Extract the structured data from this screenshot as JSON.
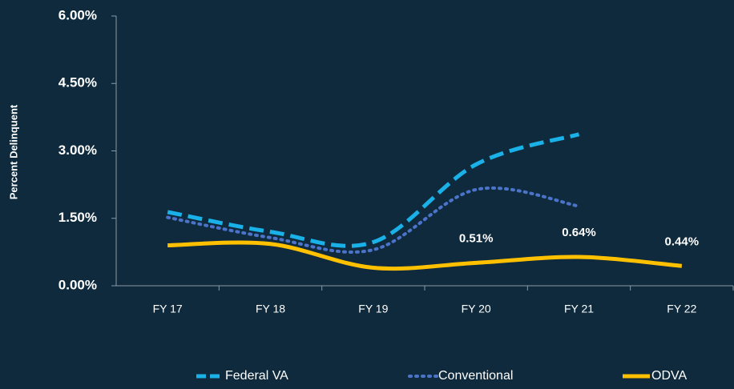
{
  "chart_data": {
    "type": "line",
    "y_label": "Percent  Delinquent",
    "categories": [
      "FY 17",
      "FY 18",
      "FY 19",
      "FY 20",
      "FY 21",
      "FY 22"
    ],
    "series": [
      {
        "name": "Federal VA",
        "color": "#1ab0e8",
        "style": "dashed",
        "values": [
          1.64,
          1.2,
          0.97,
          2.7,
          3.37,
          null
        ]
      },
      {
        "name": "Conventional",
        "color": "#4a73c9",
        "style": "dotted",
        "values": [
          1.52,
          1.07,
          0.8,
          2.14,
          1.77,
          null
        ]
      },
      {
        "name": "ODVA",
        "color": "#ffc000",
        "style": "solid",
        "values": [
          0.9,
          0.93,
          0.4,
          0.51,
          0.64,
          0.44
        ],
        "value_labels": [
          null,
          null,
          null,
          "0.51%",
          "0.64%",
          "0.44%"
        ]
      }
    ],
    "ylim": [
      0,
      6
    ],
    "yticks": [
      {
        "value": 0,
        "label": "0.00%"
      },
      {
        "value": 1.5,
        "label": "1.50%"
      },
      {
        "value": 3,
        "label": "3.00%"
      },
      {
        "value": 4.5,
        "label": "4.50%"
      },
      {
        "value": 6,
        "label": "6.00%"
      }
    ],
    "legend": "bottom"
  }
}
